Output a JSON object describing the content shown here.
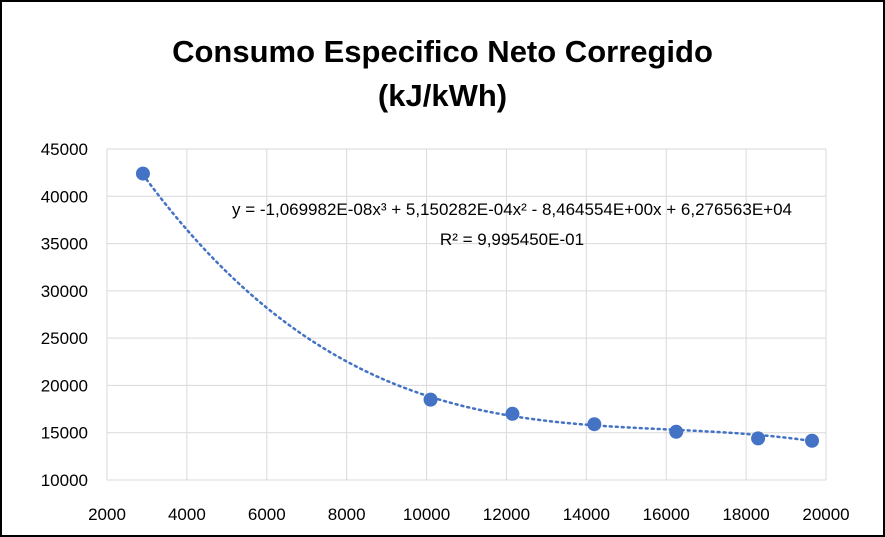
{
  "chart_data": {
    "type": "scatter",
    "title_line1": "Consumo Especifico Neto Corregido",
    "title_line2": "(kJ/kWh)",
    "xlabel": "",
    "ylabel": "",
    "xlim": [
      2000,
      20000
    ],
    "ylim": [
      10000,
      45000
    ],
    "x_ticks": [
      "2000",
      "4000",
      "6000",
      "8000",
      "10000",
      "12000",
      "14000",
      "16000",
      "18000",
      "20000"
    ],
    "y_ticks": [
      "10000",
      "15000",
      "20000",
      "25000",
      "30000",
      "35000",
      "40000",
      "45000"
    ],
    "grid": true,
    "series": [
      {
        "points": [
          [
            2900,
            42400
          ],
          [
            10100,
            18500
          ],
          [
            12150,
            17000
          ],
          [
            14200,
            15900
          ],
          [
            16250,
            15100
          ],
          [
            18300,
            14400
          ],
          [
            19650,
            14150
          ]
        ]
      }
    ],
    "trendline": {
      "type": "polynomial",
      "order": 3,
      "coefficients": [
        62765.63,
        -8.464554,
        0.0005150282,
        -1.069982e-08
      ],
      "x_range": [
        2900,
        19650
      ],
      "equation_label": "y = -1,069982E-08x³ + 5,150282E-04x² - 8,464554E+00x + 6,276563E+04",
      "r2_label": "R² = 9,995450E-01"
    },
    "colors": {
      "marker": "#4472C4",
      "trendline": "#4472C4",
      "grid": "#D9D9D9",
      "text": "#000000"
    }
  }
}
